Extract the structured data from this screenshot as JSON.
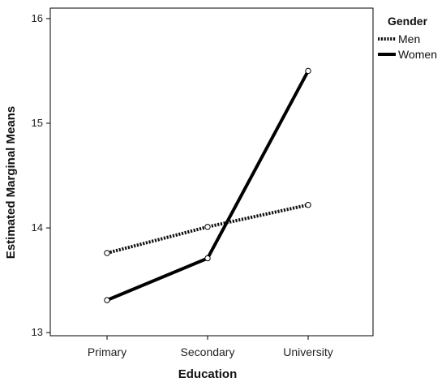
{
  "chart_data": {
    "type": "line",
    "title": "",
    "xlabel": "Education",
    "ylabel": "Estimated Marginal Means",
    "categories": [
      "Primary",
      "Secondary",
      "University"
    ],
    "ylim": [
      12.97,
      16.1
    ],
    "yticks": [
      13,
      14,
      15,
      16
    ],
    "grid": false,
    "legend": {
      "title": "Gender",
      "placement": "top-right-outside"
    },
    "series": [
      {
        "name": "Men",
        "values": [
          13.76,
          14.01,
          14.22
        ],
        "style": "dotted",
        "color": "#111111"
      },
      {
        "name": "Women",
        "values": [
          13.31,
          13.71,
          15.5
        ],
        "style": "solid",
        "color": "#000000"
      }
    ]
  }
}
